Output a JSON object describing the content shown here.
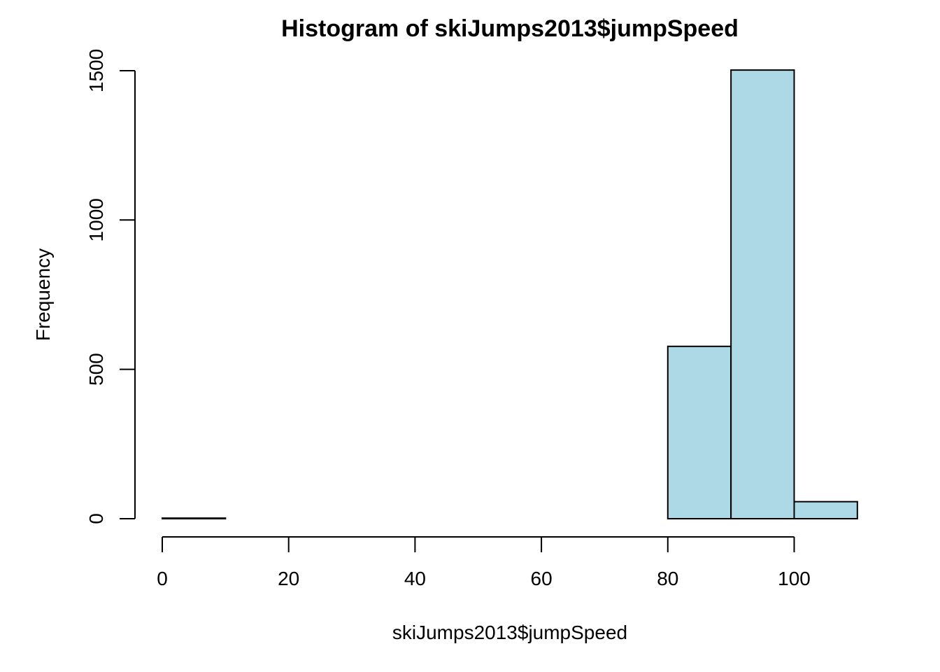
{
  "chart_data": {
    "type": "bar",
    "subtype": "histogram",
    "title": "Histogram of skiJumps2013$jumpSpeed",
    "xlabel": "skiJumps2013$jumpSpeed",
    "ylabel": "Frequency",
    "bins": [
      {
        "x0": 0,
        "x1": 10,
        "count": 2
      },
      {
        "x0": 10,
        "x1": 20,
        "count": 0
      },
      {
        "x0": 20,
        "x1": 30,
        "count": 0
      },
      {
        "x0": 30,
        "x1": 40,
        "count": 0
      },
      {
        "x0": 40,
        "x1": 50,
        "count": 0
      },
      {
        "x0": 50,
        "x1": 60,
        "count": 0
      },
      {
        "x0": 60,
        "x1": 70,
        "count": 0
      },
      {
        "x0": 70,
        "x1": 80,
        "count": 0
      },
      {
        "x0": 80,
        "x1": 90,
        "count": 577
      },
      {
        "x0": 90,
        "x1": 100,
        "count": 1502
      },
      {
        "x0": 100,
        "x1": 110,
        "count": 57
      }
    ],
    "xticks": [
      0,
      20,
      40,
      60,
      80,
      100
    ],
    "yticks": [
      0,
      500,
      1000,
      1500
    ],
    "xlim": [
      0,
      110
    ],
    "ylim": [
      0,
      1500
    ],
    "bar_color": "#add8e6",
    "grid": false,
    "legend": "none"
  }
}
